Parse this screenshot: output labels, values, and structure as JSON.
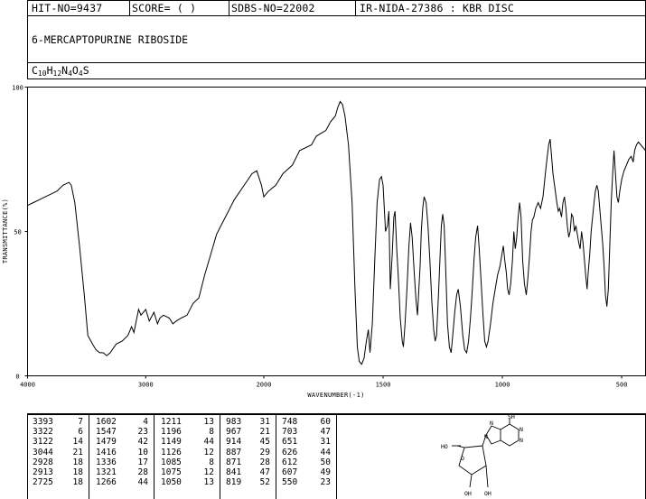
{
  "header": {
    "hit_no": "HIT-NO=9437",
    "score": "SCORE=  (   )",
    "sdbs_no": "SDBS-NO=22002",
    "ir_info": "IR-NIDA-27386 : KBR DISC"
  },
  "compound": {
    "name": "6-MERCAPTOPURINE RIBOSIDE",
    "formula_parts": [
      "C",
      "10",
      "H",
      "12",
      "N",
      "4",
      "O",
      "4",
      "S"
    ]
  },
  "chart_data": {
    "type": "line",
    "xlabel": "WAVENUMBER(-1)",
    "ylabel": "TRANSMITTANCE(%)",
    "xlim": [
      4000,
      400
    ],
    "ylim": [
      0,
      100
    ],
    "x_ticks": [
      4000,
      3000,
      2000,
      1500,
      1000,
      500
    ],
    "y_ticks": [
      0,
      50,
      100
    ],
    "x_ticklabels": [
      "4000",
      "3000",
      "2000",
      "1500",
      "1000",
      "500"
    ],
    "y_ticklabels": [
      "0",
      "50",
      "100"
    ],
    "grid": false,
    "series": [
      {
        "points": [
          [
            4000,
            59
          ],
          [
            3950,
            60
          ],
          [
            3900,
            61
          ],
          [
            3850,
            62
          ],
          [
            3800,
            63
          ],
          [
            3750,
            64
          ],
          [
            3700,
            66
          ],
          [
            3650,
            67
          ],
          [
            3630,
            66
          ],
          [
            3600,
            60
          ],
          [
            3560,
            45
          ],
          [
            3520,
            28
          ],
          [
            3490,
            14
          ],
          [
            3450,
            11
          ],
          [
            3420,
            9
          ],
          [
            3390,
            8
          ],
          [
            3360,
            8
          ],
          [
            3330,
            7
          ],
          [
            3300,
            8
          ],
          [
            3250,
            11
          ],
          [
            3200,
            12
          ],
          [
            3150,
            14
          ],
          [
            3120,
            17
          ],
          [
            3100,
            15
          ],
          [
            3090,
            17
          ],
          [
            3060,
            23
          ],
          [
            3040,
            21
          ],
          [
            3000,
            23
          ],
          [
            2970,
            19
          ],
          [
            2930,
            22
          ],
          [
            2900,
            18
          ],
          [
            2880,
            20
          ],
          [
            2850,
            21
          ],
          [
            2800,
            20
          ],
          [
            2770,
            18
          ],
          [
            2740,
            19
          ],
          [
            2700,
            20
          ],
          [
            2650,
            21
          ],
          [
            2600,
            25
          ],
          [
            2550,
            27
          ],
          [
            2500,
            35
          ],
          [
            2450,
            42
          ],
          [
            2400,
            49
          ],
          [
            2350,
            53
          ],
          [
            2300,
            57
          ],
          [
            2250,
            61
          ],
          [
            2200,
            64
          ],
          [
            2150,
            67
          ],
          [
            2100,
            70
          ],
          [
            2060,
            71
          ],
          [
            2020,
            66
          ],
          [
            2000,
            62
          ],
          [
            1980,
            64
          ],
          [
            1950,
            66
          ],
          [
            1920,
            70
          ],
          [
            1880,
            73
          ],
          [
            1850,
            78
          ],
          [
            1800,
            80
          ],
          [
            1780,
            83
          ],
          [
            1760,
            84
          ],
          [
            1740,
            85
          ],
          [
            1720,
            88
          ],
          [
            1700,
            90
          ],
          [
            1690,
            93
          ],
          [
            1680,
            95
          ],
          [
            1670,
            94
          ],
          [
            1660,
            90
          ],
          [
            1645,
            80
          ],
          [
            1630,
            60
          ],
          [
            1618,
            30
          ],
          [
            1608,
            10
          ],
          [
            1600,
            5
          ],
          [
            1590,
            4
          ],
          [
            1580,
            6
          ],
          [
            1570,
            12
          ],
          [
            1562,
            16
          ],
          [
            1555,
            8
          ],
          [
            1545,
            18
          ],
          [
            1535,
            40
          ],
          [
            1525,
            60
          ],
          [
            1515,
            68
          ],
          [
            1507,
            69
          ],
          [
            1500,
            66
          ],
          [
            1490,
            50
          ],
          [
            1482,
            52
          ],
          [
            1476,
            57
          ],
          [
            1470,
            30
          ],
          [
            1462,
            42
          ],
          [
            1455,
            55
          ],
          [
            1450,
            57
          ],
          [
            1443,
            44
          ],
          [
            1436,
            34
          ],
          [
            1428,
            20
          ],
          [
            1420,
            12
          ],
          [
            1415,
            10
          ],
          [
            1408,
            18
          ],
          [
            1400,
            30
          ],
          [
            1392,
            45
          ],
          [
            1385,
            53
          ],
          [
            1378,
            48
          ],
          [
            1370,
            36
          ],
          [
            1362,
            26
          ],
          [
            1356,
            21
          ],
          [
            1350,
            30
          ],
          [
            1345,
            38
          ],
          [
            1340,
            50
          ],
          [
            1334,
            58
          ],
          [
            1328,
            62
          ],
          [
            1320,
            60
          ],
          [
            1312,
            52
          ],
          [
            1304,
            40
          ],
          [
            1296,
            26
          ],
          [
            1288,
            16
          ],
          [
            1282,
            12
          ],
          [
            1276,
            14
          ],
          [
            1268,
            28
          ],
          [
            1262,
            40
          ],
          [
            1256,
            52
          ],
          [
            1250,
            56
          ],
          [
            1244,
            52
          ],
          [
            1238,
            38
          ],
          [
            1230,
            18
          ],
          [
            1222,
            10
          ],
          [
            1215,
            8
          ],
          [
            1208,
            14
          ],
          [
            1200,
            22
          ],
          [
            1192,
            28
          ],
          [
            1185,
            30
          ],
          [
            1176,
            24
          ],
          [
            1166,
            14
          ],
          [
            1158,
            9
          ],
          [
            1150,
            8
          ],
          [
            1142,
            12
          ],
          [
            1134,
            20
          ],
          [
            1126,
            30
          ],
          [
            1119,
            40
          ],
          [
            1112,
            48
          ],
          [
            1104,
            52
          ],
          [
            1097,
            44
          ],
          [
            1089,
            32
          ],
          [
            1082,
            22
          ],
          [
            1074,
            12
          ],
          [
            1067,
            10
          ],
          [
            1060,
            12
          ],
          [
            1050,
            18
          ],
          [
            1040,
            25
          ],
          [
            1030,
            30
          ],
          [
            1020,
            35
          ],
          [
            1010,
            38
          ],
          [
            1002,
            42
          ],
          [
            996,
            45
          ],
          [
            990,
            40
          ],
          [
            984,
            36
          ],
          [
            978,
            30
          ],
          [
            972,
            28
          ],
          [
            965,
            32
          ],
          [
            958,
            40
          ],
          [
            952,
            50
          ],
          [
            946,
            44
          ],
          [
            940,
            48
          ],
          [
            934,
            55
          ],
          [
            928,
            60
          ],
          [
            922,
            55
          ],
          [
            915,
            40
          ],
          [
            908,
            32
          ],
          [
            900,
            28
          ],
          [
            893,
            34
          ],
          [
            886,
            42
          ],
          [
            880,
            50
          ],
          [
            874,
            54
          ],
          [
            868,
            55
          ],
          [
            860,
            58
          ],
          [
            850,
            60
          ],
          [
            840,
            58
          ],
          [
            830,
            62
          ],
          [
            820,
            70
          ],
          [
            812,
            76
          ],
          [
            806,
            80
          ],
          [
            800,
            82
          ],
          [
            794,
            76
          ],
          [
            788,
            70
          ],
          [
            780,
            65
          ],
          [
            772,
            60
          ],
          [
            766,
            57
          ],
          [
            760,
            58
          ],
          [
            752,
            55
          ],
          [
            746,
            60
          ],
          [
            740,
            62
          ],
          [
            734,
            58
          ],
          [
            728,
            52
          ],
          [
            722,
            48
          ],
          [
            716,
            50
          ],
          [
            710,
            56
          ],
          [
            704,
            55
          ],
          [
            698,
            50
          ],
          [
            692,
            52
          ],
          [
            686,
            49
          ],
          [
            680,
            46
          ],
          [
            674,
            44
          ],
          [
            668,
            50
          ],
          [
            662,
            46
          ],
          [
            656,
            40
          ],
          [
            650,
            34
          ],
          [
            645,
            30
          ],
          [
            640,
            36
          ],
          [
            634,
            42
          ],
          [
            628,
            50
          ],
          [
            622,
            55
          ],
          [
            616,
            60
          ],
          [
            610,
            64
          ],
          [
            604,
            66
          ],
          [
            598,
            64
          ],
          [
            592,
            58
          ],
          [
            586,
            52
          ],
          [
            580,
            46
          ],
          [
            574,
            38
          ],
          [
            568,
            28
          ],
          [
            562,
            24
          ],
          [
            556,
            30
          ],
          [
            550,
            45
          ],
          [
            544,
            60
          ],
          [
            538,
            70
          ],
          [
            532,
            78
          ],
          [
            526,
            70
          ],
          [
            520,
            62
          ],
          [
            514,
            60
          ],
          [
            508,
            64
          ],
          [
            500,
            68
          ],
          [
            490,
            71
          ],
          [
            480,
            73
          ],
          [
            470,
            75
          ],
          [
            460,
            76
          ],
          [
            452,
            74
          ],
          [
            446,
            78
          ],
          [
            438,
            80
          ],
          [
            430,
            81
          ],
          [
            420,
            80
          ],
          [
            410,
            79
          ],
          [
            400,
            78
          ]
        ]
      }
    ]
  },
  "peak_table": [
    {
      "wn": "3393",
      "t": "7"
    },
    {
      "wn": "3322",
      "t": "6"
    },
    {
      "wn": "3122",
      "t": "14"
    },
    {
      "wn": "3044",
      "t": "21"
    },
    {
      "wn": "2928",
      "t": "18"
    },
    {
      "wn": "2913",
      "t": "18"
    },
    {
      "wn": "2725",
      "t": "18"
    },
    {
      "wn": "1602",
      "t": "4"
    },
    {
      "wn": "1547",
      "t": "23"
    },
    {
      "wn": "1479",
      "t": "42"
    },
    {
      "wn": "1416",
      "t": "10"
    },
    {
      "wn": "1336",
      "t": "17"
    },
    {
      "wn": "1321",
      "t": "28"
    },
    {
      "wn": "1266",
      "t": "44"
    },
    {
      "wn": "1211",
      "t": "13"
    },
    {
      "wn": "1196",
      "t": "8"
    },
    {
      "wn": "1149",
      "t": "44"
    },
    {
      "wn": "1126",
      "t": "12"
    },
    {
      "wn": "1085",
      "t": "8"
    },
    {
      "wn": "1075",
      "t": "12"
    },
    {
      "wn": "1050",
      "t": "13"
    },
    {
      "wn": "983",
      "t": "31"
    },
    {
      "wn": "967",
      "t": "21"
    },
    {
      "wn": "914",
      "t": "45"
    },
    {
      "wn": "887",
      "t": "29"
    },
    {
      "wn": "871",
      "t": "28"
    },
    {
      "wn": "841",
      "t": "47"
    },
    {
      "wn": "819",
      "t": "52"
    },
    {
      "wn": "748",
      "t": "60"
    },
    {
      "wn": "703",
      "t": "47"
    },
    {
      "wn": "651",
      "t": "31"
    },
    {
      "wn": "626",
      "t": "44"
    },
    {
      "wn": "612",
      "t": "50"
    },
    {
      "wn": "607",
      "t": "49"
    },
    {
      "wn": "550",
      "t": "23"
    }
  ],
  "structure_labels": {
    "sh": "SH",
    "ho": "HO",
    "oh1": "OH",
    "oh2": "OH",
    "n1": "N",
    "n2": "N",
    "n3": "N",
    "n4": "N",
    "o_ring": "O"
  }
}
